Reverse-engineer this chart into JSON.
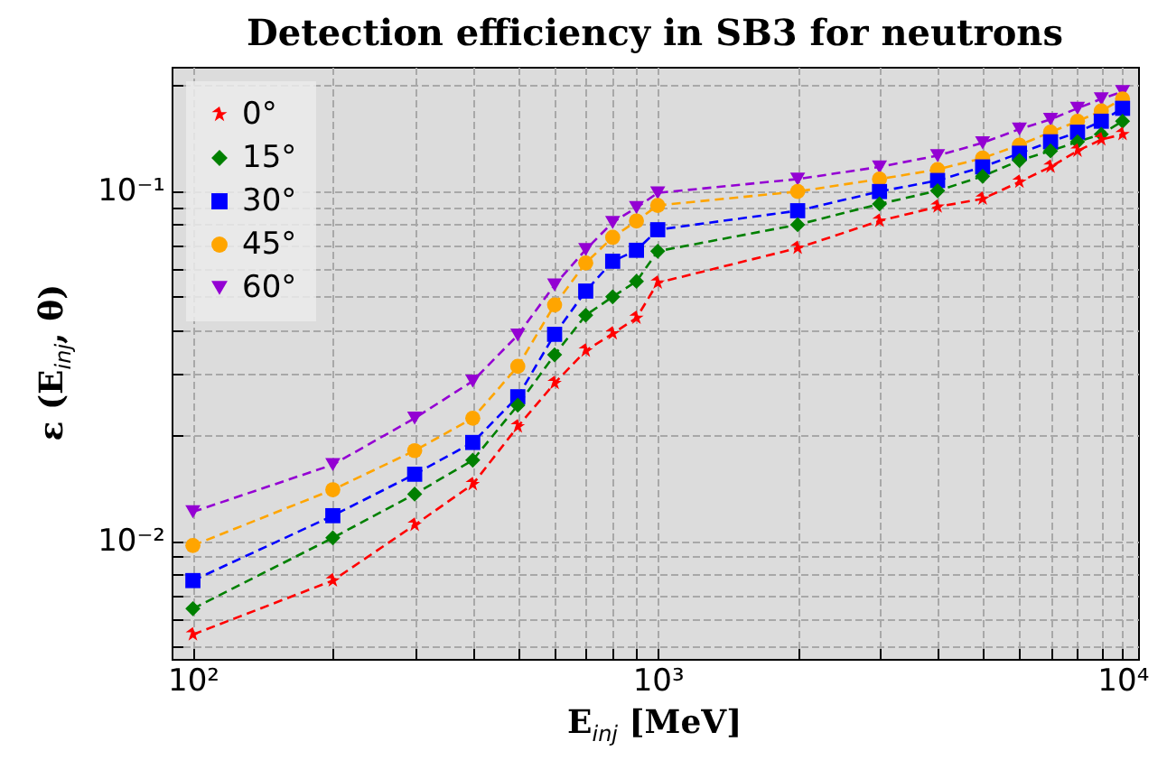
{
  "chart_data": {
    "type": "line",
    "title": "Detection efficiency in SB3 for neutrons",
    "xlabel": "E$_{inj}$ [MeV]",
    "ylabel": "ε (E$_{inj}$, θ)",
    "x": [
      100,
      200,
      300,
      400,
      500,
      600,
      700,
      800,
      900,
      1000,
      2000,
      3000,
      4000,
      5000,
      6000,
      7000,
      8000,
      9000,
      10000
    ],
    "series": [
      {
        "name": "0°",
        "color": "#ff0000",
        "marker": "star",
        "values": [
          0.0054,
          0.0077,
          0.0111,
          0.0145,
          0.0212,
          0.0282,
          0.0349,
          0.0391,
          0.0433,
          0.0546,
          0.0686,
          0.082,
          0.09,
          0.0948,
          0.106,
          0.117,
          0.13,
          0.14,
          0.145
        ]
      },
      {
        "name": "15°",
        "color": "#008000",
        "marker": "diamond",
        "values": [
          0.0064,
          0.0102,
          0.0136,
          0.017,
          0.0244,
          0.034,
          0.0441,
          0.0498,
          0.0551,
          0.0672,
          0.08,
          0.0917,
          0.1,
          0.11,
          0.122,
          0.13,
          0.138,
          0.145,
          0.158
        ]
      },
      {
        "name": "30°",
        "color": "#0000ff",
        "marker": "square",
        "values": [
          0.0077,
          0.0118,
          0.0155,
          0.0191,
          0.0258,
          0.0389,
          0.0517,
          0.0629,
          0.0676,
          0.0774,
          0.0877,
          0.0995,
          0.107,
          0.117,
          0.128,
          0.138,
          0.147,
          0.158,
          0.172
        ]
      },
      {
        "name": "45°",
        "color": "#ffa500",
        "marker": "circle",
        "values": [
          0.0097,
          0.014,
          0.0181,
          0.0224,
          0.0315,
          0.0472,
          0.0622,
          0.0736,
          0.082,
          0.0908,
          0.0995,
          0.108,
          0.115,
          0.124,
          0.135,
          0.147,
          0.158,
          0.169,
          0.183
        ]
      },
      {
        "name": "60°",
        "color": "#9400d3",
        "marker": "triangle-down",
        "values": [
          0.0121,
          0.0165,
          0.0224,
          0.0286,
          0.0387,
          0.0538,
          0.0679,
          0.0812,
          0.0895,
          0.0986,
          0.108,
          0.117,
          0.126,
          0.137,
          0.15,
          0.16,
          0.172,
          0.183,
          0.192
        ]
      }
    ],
    "log": "xy",
    "xlim": [
      90,
      10800
    ],
    "ylim": [
      0.0046,
      0.226
    ],
    "xticks": [
      {
        "value": 100,
        "label": "10²"
      },
      {
        "value": 200,
        "label": null
      },
      {
        "value": 300,
        "label": null
      },
      {
        "value": 400,
        "label": null
      },
      {
        "value": 500,
        "label": null
      },
      {
        "value": 600,
        "label": null
      },
      {
        "value": 700,
        "label": null
      },
      {
        "value": 800,
        "label": null
      },
      {
        "value": 900,
        "label": null
      },
      {
        "value": 1000,
        "label": "10³"
      },
      {
        "value": 2000,
        "label": null
      },
      {
        "value": 3000,
        "label": null
      },
      {
        "value": 4000,
        "label": null
      },
      {
        "value": 5000,
        "label": null
      },
      {
        "value": 6000,
        "label": null
      },
      {
        "value": 7000,
        "label": null
      },
      {
        "value": 8000,
        "label": null
      },
      {
        "value": 9000,
        "label": null
      },
      {
        "value": 10000,
        "label": "10⁴"
      }
    ],
    "yticks": [
      {
        "value": 0.005,
        "label": null
      },
      {
        "value": 0.006,
        "label": null
      },
      {
        "value": 0.007,
        "label": null
      },
      {
        "value": 0.008,
        "label": null
      },
      {
        "value": 0.009,
        "label": null
      },
      {
        "value": 0.01,
        "label": "10⁻²"
      },
      {
        "value": 0.02,
        "label": null
      },
      {
        "value": 0.03,
        "label": null
      },
      {
        "value": 0.04,
        "label": null
      },
      {
        "value": 0.05,
        "label": null
      },
      {
        "value": 0.06,
        "label": null
      },
      {
        "value": 0.07,
        "label": null
      },
      {
        "value": 0.08,
        "label": null
      },
      {
        "value": 0.09,
        "label": null
      },
      {
        "value": 0.1,
        "label": "10⁻¹"
      },
      {
        "value": 0.2,
        "label": null
      }
    ],
    "grid": true,
    "legend": "top left",
    "line_style": "dashed"
  }
}
